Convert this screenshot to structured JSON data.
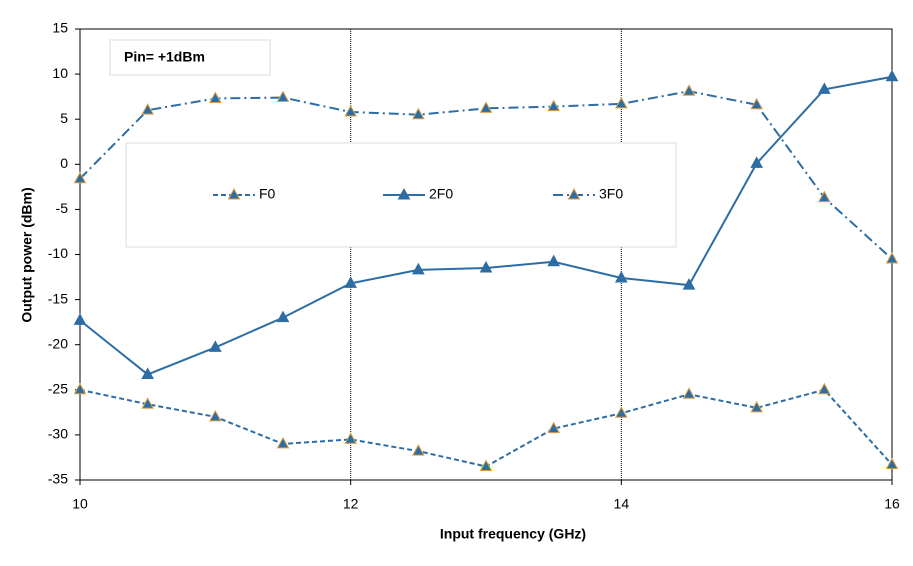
{
  "chart_data": {
    "type": "line",
    "annotation": "Pin= +1dBm",
    "x_label": "Input frequency (GHz)",
    "y_label": "Output power (dBm)",
    "x": [
      10,
      10.5,
      11,
      11.5,
      12,
      12.5,
      13,
      13.5,
      14,
      14.5,
      15,
      15.5,
      16
    ],
    "series": [
      {
        "name": "F0",
        "color": "#2e6da4",
        "marker_edge": "#e0a040",
        "style": "dashed",
        "values": [
          -25,
          -26.6,
          -28,
          -31,
          -30.5,
          -31.8,
          -33.5,
          -29.3,
          -27.6,
          -25.5,
          -27,
          -25,
          -33.3
        ]
      },
      {
        "name": "2F0",
        "color": "#2e6da4",
        "marker_edge": "#2e6da4",
        "style": "solid",
        "values": [
          -17.3,
          -23.3,
          -20.3,
          -17,
          -13.2,
          -11.7,
          -11.5,
          -10.8,
          -12.6,
          -13.4,
          0.1,
          8.3,
          9.7
        ]
      },
      {
        "name": "3F0",
        "color": "#2e6da4",
        "marker_edge": "#e0a040",
        "style": "dashdot",
        "values": [
          -1.6,
          6,
          7.3,
          7.4,
          5.8,
          5.5,
          6.2,
          6.4,
          6.7,
          8.1,
          6.6,
          -3.7,
          -10.5
        ]
      }
    ],
    "xlim": [
      10,
      16
    ],
    "xticks": [
      10,
      12,
      14,
      16
    ],
    "ylim": [
      -35,
      15
    ],
    "yticks": [
      -35,
      -30,
      -25,
      -20,
      -15,
      -10,
      -5,
      0,
      5,
      10,
      15
    ],
    "grid": "x"
  }
}
